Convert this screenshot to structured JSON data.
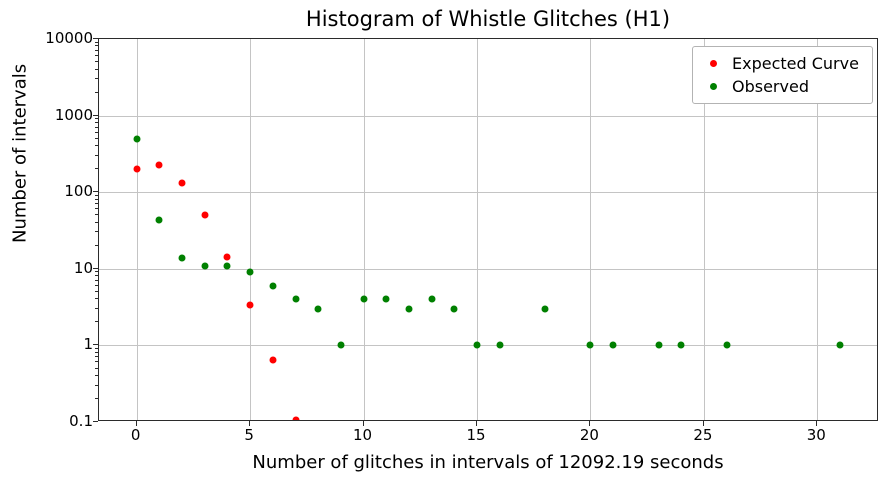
{
  "chart_data": {
    "type": "scatter",
    "title": "Histogram of Whistle Glitches (H1)",
    "xlabel": "Number of glitches in intervals of 12092.19 seconds",
    "ylabel": "Number of intervals",
    "yscale": "log",
    "xlim": [
      -1.66,
      32.72
    ],
    "ylim": [
      0.1,
      10000
    ],
    "x_ticks": [
      0,
      5,
      10,
      15,
      20,
      25,
      30
    ],
    "y_ticks": [
      {
        "value": 10000,
        "label": "10000"
      },
      {
        "value": 1000,
        "label": "1000"
      },
      {
        "value": 100,
        "label": "100"
      },
      {
        "value": 10,
        "label": "10"
      },
      {
        "value": 1,
        "label": "1"
      },
      {
        "value": 0.1,
        "label": "0.1"
      }
    ],
    "grid": true,
    "legend_position": "upper right",
    "series": [
      {
        "name": "Expected Curve",
        "color": "#ff0000",
        "points": [
          [
            0,
            200
          ],
          [
            1,
            230
          ],
          [
            2,
            131
          ],
          [
            3,
            50
          ],
          [
            4,
            14.4
          ],
          [
            5,
            3.4
          ],
          [
            6,
            0.64
          ],
          [
            7,
            0.105
          ]
        ]
      },
      {
        "name": "Observed",
        "color": "#008000",
        "points": [
          [
            0,
            500
          ],
          [
            1,
            43
          ],
          [
            2,
            14
          ],
          [
            3,
            11
          ],
          [
            4,
            11
          ],
          [
            5,
            9
          ],
          [
            6,
            6
          ],
          [
            7,
            4
          ],
          [
            8,
            3
          ],
          [
            9,
            1
          ],
          [
            10,
            4
          ],
          [
            11,
            4
          ],
          [
            12,
            3
          ],
          [
            13,
            4
          ],
          [
            14,
            3
          ],
          [
            15,
            1
          ],
          [
            16,
            1
          ],
          [
            18,
            3
          ],
          [
            20,
            1
          ],
          [
            21,
            1
          ],
          [
            23,
            1
          ],
          [
            24,
            1
          ],
          [
            26,
            1
          ],
          [
            31,
            1
          ]
        ]
      }
    ]
  }
}
